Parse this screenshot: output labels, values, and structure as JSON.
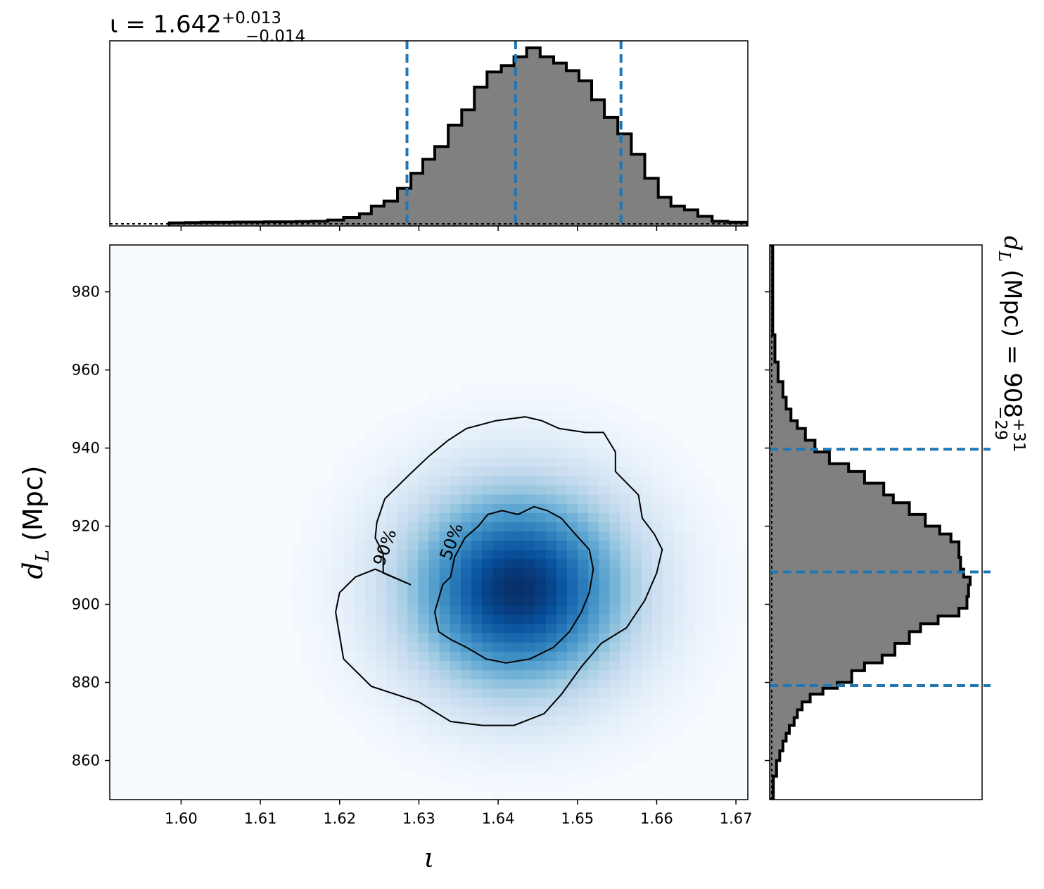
{
  "chart_data": {
    "type": "scatter",
    "subtype": "corner-plot",
    "panels": {
      "top_histogram": {
        "type": "bar",
        "title": "ι = 1.642",
        "title_upper": "+0.013",
        "title_lower": "−0.014",
        "median": 1.642,
        "upper_err": 0.013,
        "lower_err": 0.014,
        "lines": [
          1.6285,
          1.6422,
          1.6555
        ],
        "line_color": "#1f77b4",
        "fill_color": "#808080",
        "bin_edges": [
          1.5985,
          1.6005,
          1.6025,
          1.6045,
          1.6065,
          1.6085,
          1.6105,
          1.6125,
          1.6145,
          1.6165,
          1.6185,
          1.6205,
          1.6225,
          1.624,
          1.6256,
          1.6273,
          1.629,
          1.6305,
          1.632,
          1.6337,
          1.6354,
          1.637,
          1.6386,
          1.6404,
          1.642,
          1.6436,
          1.6453,
          1.647,
          1.6486,
          1.6502,
          1.6518,
          1.6534,
          1.6551,
          1.6568,
          1.6585,
          1.6602,
          1.6618,
          1.6635,
          1.6652,
          1.667,
          1.669,
          1.6715
        ],
        "counts": [
          0.4,
          0.5,
          0.6,
          0.6,
          0.7,
          0.7,
          0.8,
          0.8,
          0.9,
          1.0,
          1.5,
          2.5,
          4.0,
          7.0,
          9.0,
          14.0,
          20.0,
          25.5,
          30.5,
          39.0,
          45.0,
          54.0,
          60.0,
          62.5,
          66.0,
          69.5,
          66.0,
          63.5,
          60.5,
          56.5,
          49.0,
          42.0,
          35.5,
          27.5,
          18.0,
          10.5,
          7.0,
          5.5,
          3.0,
          1.0,
          0.6
        ]
      },
      "main": {
        "type": "heatmap",
        "xlabel": "ι",
        "ylabel": "d_L (Mpc)",
        "xlim": [
          1.591,
          1.6715
        ],
        "ylim": [
          850,
          992
        ],
        "xticks": [
          1.6,
          1.61,
          1.62,
          1.63,
          1.64,
          1.65,
          1.66,
          1.67
        ],
        "xtick_labels": [
          "1.60",
          "1.61",
          "1.62",
          "1.63",
          "1.64",
          "1.65",
          "1.66",
          "1.67"
        ],
        "yticks": [
          860,
          880,
          900,
          920,
          940,
          960,
          980
        ],
        "ytick_labels": [
          "860",
          "880",
          "900",
          "920",
          "940",
          "960",
          "980"
        ],
        "colormap": "Blues",
        "peak": [
          1.6425,
          904
        ],
        "contours": [
          {
            "label": "90%",
            "points": [
              [
                1.629,
                905
              ],
              [
                1.6255,
                908
              ],
              [
                1.6255,
                913
              ],
              [
                1.6245,
                917
              ],
              [
                1.6247,
                921
              ],
              [
                1.6257,
                927
              ],
              [
                1.6287,
                933
              ],
              [
                1.6313,
                938
              ],
              [
                1.6337,
                942
              ],
              [
                1.636,
                945
              ],
              [
                1.6397,
                947
              ],
              [
                1.6434,
                948
              ],
              [
                1.6455,
                947
              ],
              [
                1.6477,
                945
              ],
              [
                1.651,
                944
              ],
              [
                1.6533,
                944
              ],
              [
                1.6548,
                939
              ],
              [
                1.6548,
                934
              ],
              [
                1.6577,
                928
              ],
              [
                1.6582,
                922
              ],
              [
                1.6597,
                918
              ],
              [
                1.6607,
                914
              ],
              [
                1.66,
                908
              ],
              [
                1.6585,
                901
              ],
              [
                1.6562,
                894
              ],
              [
                1.653,
                890
              ],
              [
                1.6505,
                884
              ],
              [
                1.648,
                877
              ],
              [
                1.6458,
                872
              ],
              [
                1.642,
                869
              ],
              [
                1.638,
                869
              ],
              [
                1.634,
                870
              ],
              [
                1.63,
                875
              ],
              [
                1.624,
                879
              ],
              [
                1.622,
                883
              ],
              [
                1.6205,
                886
              ],
              [
                1.62,
                892
              ],
              [
                1.6195,
                898
              ],
              [
                1.62,
                903
              ],
              [
                1.622,
                907
              ],
              [
                1.6245,
                909
              ],
              [
                1.629,
                905
              ]
            ]
          },
          {
            "label": "50%",
            "points": [
              [
                1.634,
                907
              ],
              [
                1.633,
                905
              ],
              [
                1.632,
                898
              ],
              [
                1.6325,
                893
              ],
              [
                1.634,
                891
              ],
              [
                1.636,
                889
              ],
              [
                1.6385,
                886
              ],
              [
                1.641,
                885
              ],
              [
                1.644,
                886
              ],
              [
                1.647,
                889
              ],
              [
                1.649,
                893
              ],
              [
                1.6505,
                898
              ],
              [
                1.6515,
                903
              ],
              [
                1.652,
                909
              ],
              [
                1.6515,
                914
              ],
              [
                1.6497,
                918
              ],
              [
                1.648,
                922
              ],
              [
                1.6462,
                924
              ],
              [
                1.6445,
                925
              ],
              [
                1.6425,
                923
              ],
              [
                1.6405,
                924
              ],
              [
                1.6387,
                923
              ],
              [
                1.6375,
                920
              ],
              [
                1.6358,
                917
              ],
              [
                1.6345,
                912
              ],
              [
                1.634,
                907
              ]
            ]
          }
        ]
      },
      "right_histogram": {
        "type": "bar",
        "orientation": "horizontal",
        "title": "d_L (Mpc) = 908",
        "title_upper": "+31",
        "title_lower": "−29",
        "median": 908,
        "upper_err": 31,
        "lower_err": 29,
        "lines": [
          879.2,
          908.3,
          939.7
        ],
        "line_color": "#1f77b4",
        "fill_color": "#808080",
        "bin_edges": [
          850,
          856,
          860,
          862.5,
          865,
          867,
          869,
          871,
          873,
          875,
          877,
          878.5,
          880,
          883,
          885,
          887,
          890,
          893,
          895,
          897,
          899,
          902,
          905,
          907,
          909,
          912,
          916,
          918,
          920,
          923,
          926,
          928,
          931,
          934,
          936,
          939,
          942,
          945,
          947,
          950,
          953,
          957,
          962,
          969,
          992
        ],
        "counts": [
          0.5,
          1.5,
          2.5,
          3.5,
          4.5,
          5.5,
          7.0,
          8.0,
          9.5,
          12.0,
          16.0,
          20.5,
          25.0,
          29.0,
          34.5,
          38.5,
          43.0,
          46.5,
          52.0,
          58.5,
          61.0,
          61.5,
          62.0,
          60.0,
          59.0,
          58.5,
          56.0,
          52.5,
          48.0,
          43.0,
          38.0,
          35.0,
          29.0,
          24.0,
          18.0,
          13.5,
          10.5,
          8.0,
          6.0,
          4.5,
          3.5,
          2.0,
          1.0,
          0.3
        ]
      }
    }
  }
}
